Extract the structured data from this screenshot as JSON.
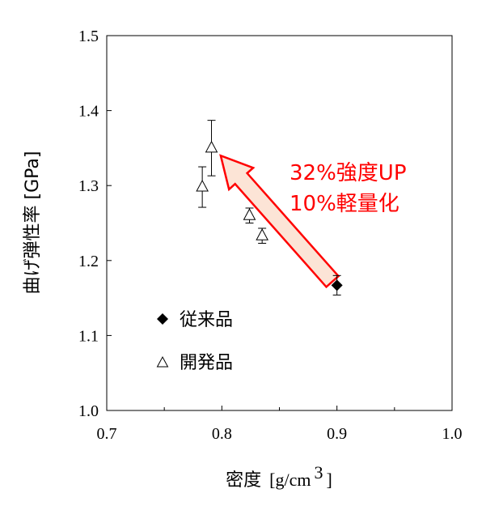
{
  "chart_data": {
    "type": "scatter",
    "xlabel": "密度 [g/cm³]",
    "xlabel_main": "密度",
    "xlabel_unit": "[g/cm",
    "xlabel_sup": "3",
    "xlabel_close": "]",
    "ylabel": "曲げ弾性率 [GPa]",
    "xlim": [
      0.7,
      1.0
    ],
    "ylim": [
      1.0,
      1.5
    ],
    "x_ticks": [
      "0.7",
      "0.8",
      "0.9",
      "1.0"
    ],
    "y_ticks": [
      "1.0",
      "1.1",
      "1.2",
      "1.3",
      "1.4",
      "1.5"
    ],
    "grid": false,
    "legend_position": "bottom-left",
    "series": [
      {
        "name": "従来品",
        "marker": "filled-diamond",
        "color": "#000000",
        "points": [
          {
            "x": 0.9,
            "y": 1.167,
            "err": 0.013
          }
        ]
      },
      {
        "name": "開発品",
        "marker": "open-triangle",
        "color": "#000000",
        "points": [
          {
            "x": 0.783,
            "y": 1.298,
            "err": 0.027
          },
          {
            "x": 0.791,
            "y": 1.35,
            "err": 0.037
          },
          {
            "x": 0.824,
            "y": 1.26,
            "err": 0.01
          },
          {
            "x": 0.835,
            "y": 1.233,
            "err": 0.01
          }
        ]
      }
    ],
    "annotations": {
      "arrow": {
        "from": {
          "x": 0.896,
          "y": 1.172
        },
        "to": {
          "x": 0.799,
          "y": 1.34
        },
        "stroke": "#ff0000",
        "fill": "#fce4d6"
      },
      "lines": [
        "32%強度UP",
        "10%軽量化"
      ],
      "color": "#ff0000"
    }
  }
}
